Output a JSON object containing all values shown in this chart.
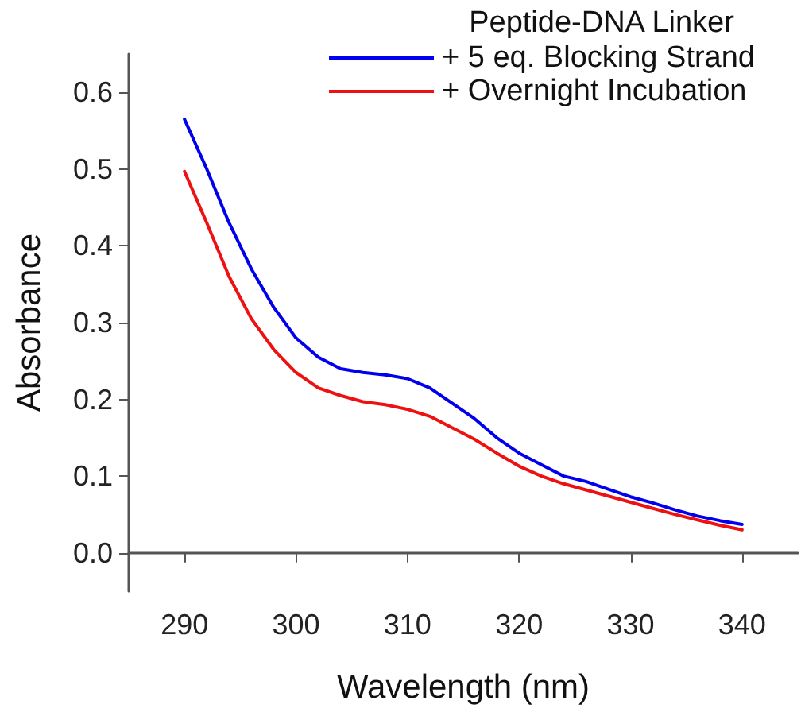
{
  "chart_data": {
    "type": "line",
    "xlabel": "Wavelength (nm)",
    "ylabel": "Absorbance",
    "legend_title": "Peptide-DNA Linker",
    "legend": "top right",
    "grid": false,
    "marker": "none",
    "line_style": "solid",
    "x": [
      290,
      292,
      294,
      296,
      298,
      300,
      302,
      304,
      306,
      308,
      310,
      312,
      314,
      316,
      318,
      320,
      322,
      324,
      326,
      328,
      330,
      332,
      334,
      336,
      338,
      340
    ],
    "xlim": [
      285,
      345
    ],
    "xticks": [
      290,
      300,
      310,
      320,
      330,
      340
    ],
    "ylim": [
      -0.05,
      0.65
    ],
    "yticks": [
      {
        "value": 0,
        "label": "0.0"
      },
      {
        "value": 0.1,
        "label": "0.1"
      },
      {
        "value": 0.2,
        "label": "0.2"
      },
      {
        "value": 0.3,
        "label": "0.3"
      },
      {
        "value": 0.4,
        "label": "0.4"
      },
      {
        "value": 0.5,
        "label": "0.5"
      },
      {
        "value": 0.6,
        "label": "0.6"
      }
    ],
    "series": [
      {
        "name": "+ 5 eq. Blocking Strand",
        "color": "#0000ee",
        "values": [
          0.565,
          0.5,
          0.43,
          0.37,
          0.32,
          0.28,
          0.255,
          0.24,
          0.235,
          0.232,
          0.227,
          0.215,
          0.195,
          0.175,
          0.15,
          0.13,
          0.115,
          0.1,
          0.093,
          0.083,
          0.073,
          0.065,
          0.056,
          0.048,
          0.042,
          0.037
        ]
      },
      {
        "name": "+ Overnight Incubation",
        "color": "#ee1111",
        "values": [
          0.497,
          0.43,
          0.36,
          0.305,
          0.265,
          0.235,
          0.215,
          0.205,
          0.197,
          0.193,
          0.187,
          0.178,
          0.163,
          0.148,
          0.13,
          0.113,
          0.1,
          0.09,
          0.082,
          0.074,
          0.066,
          0.058,
          0.05,
          0.043,
          0.036,
          0.03
        ]
      }
    ]
  }
}
